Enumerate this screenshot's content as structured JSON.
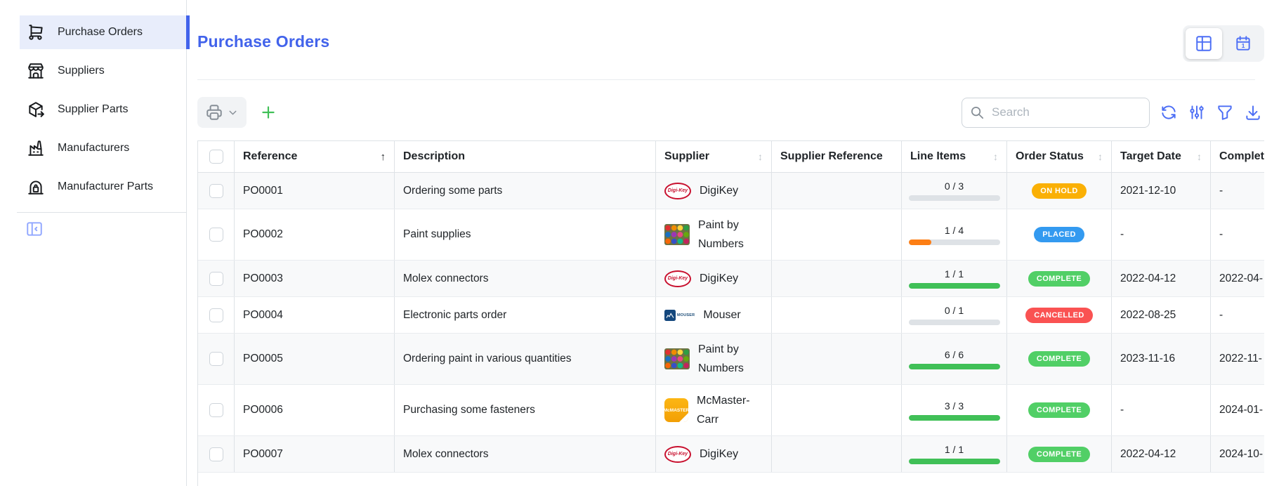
{
  "sidebar": {
    "items": [
      {
        "label": "Purchase Orders",
        "icon": "shopping-cart-icon",
        "active": true
      },
      {
        "label": "Suppliers",
        "icon": "storefront-icon",
        "active": false
      },
      {
        "label": "Supplier Parts",
        "icon": "package-export-icon",
        "active": false
      },
      {
        "label": "Manufacturers",
        "icon": "factory-icon",
        "active": false
      },
      {
        "label": "Manufacturer Parts",
        "icon": "warehouse-lock-icon",
        "active": false
      }
    ]
  },
  "header": {
    "title": "Purchase Orders",
    "view_toggle": [
      {
        "name": "table-view",
        "active": true
      },
      {
        "name": "calendar-view",
        "active": false
      }
    ]
  },
  "toolbar": {
    "search_placeholder": "Search",
    "search_value": ""
  },
  "table": {
    "sort_glyphs": {
      "asc": "↑",
      "both": "↕"
    },
    "columns": [
      {
        "label": "",
        "sort": null
      },
      {
        "label": "Reference",
        "sort": "asc"
      },
      {
        "label": "Description",
        "sort": null
      },
      {
        "label": "Supplier",
        "sort": "both"
      },
      {
        "label": "Supplier Reference",
        "sort": null
      },
      {
        "label": "Line Items",
        "sort": "both"
      },
      {
        "label": "Order Status",
        "sort": "both"
      },
      {
        "label": "Target Date",
        "sort": "both"
      },
      {
        "label": "Completion Date",
        "sort": null
      }
    ],
    "logos": {
      "digikey_label": "Digi-Key",
      "mouser_label": "MOUSER",
      "mcmaster_label": "McMASTER"
    },
    "rows": [
      {
        "reference": "PO0001",
        "description": "Ordering some parts",
        "supplier": {
          "name": "DigiKey",
          "logo": "digikey"
        },
        "supplier_reference": "",
        "line_items": {
          "text": "0 / 3",
          "pct": 0,
          "color": "#fd7e14"
        },
        "status": {
          "label": "ON HOLD",
          "color": "#fab005"
        },
        "target_date": "2021-12-10",
        "completion_date": "-"
      },
      {
        "reference": "PO0002",
        "description": "Paint supplies",
        "supplier": {
          "name": "Paint by Numbers",
          "logo": "paint"
        },
        "supplier_reference": "",
        "line_items": {
          "text": "1 / 4",
          "pct": 25,
          "color": "#fd7e14"
        },
        "status": {
          "label": "PLACED",
          "color": "#339af0"
        },
        "target_date": "-",
        "completion_date": "-"
      },
      {
        "reference": "PO0003",
        "description": "Molex connectors",
        "supplier": {
          "name": "DigiKey",
          "logo": "digikey"
        },
        "supplier_reference": "",
        "line_items": {
          "text": "1 / 1",
          "pct": 100,
          "color": "#40c057"
        },
        "status": {
          "label": "COMPLETE",
          "color": "#51cf66"
        },
        "target_date": "2022-04-12",
        "completion_date": "2022-04-"
      },
      {
        "reference": "PO0004",
        "description": "Electronic parts order",
        "supplier": {
          "name": "Mouser",
          "logo": "mouser"
        },
        "supplier_reference": "",
        "line_items": {
          "text": "0 / 1",
          "pct": 0,
          "color": "#fd7e14"
        },
        "status": {
          "label": "CANCELLED",
          "color": "#fa5252"
        },
        "target_date": "2022-08-25",
        "completion_date": "-"
      },
      {
        "reference": "PO0005",
        "description": "Ordering paint in various quantities",
        "supplier": {
          "name": "Paint by Numbers",
          "logo": "paint"
        },
        "supplier_reference": "",
        "line_items": {
          "text": "6 / 6",
          "pct": 100,
          "color": "#40c057"
        },
        "status": {
          "label": "COMPLETE",
          "color": "#51cf66"
        },
        "target_date": "2023-11-16",
        "completion_date": "2022-11-"
      },
      {
        "reference": "PO0006",
        "description": "Purchasing some fasteners",
        "supplier": {
          "name": "McMaster-Carr",
          "logo": "mcmaster"
        },
        "supplier_reference": "",
        "line_items": {
          "text": "3 / 3",
          "pct": 100,
          "color": "#40c057"
        },
        "status": {
          "label": "COMPLETE",
          "color": "#51cf66"
        },
        "target_date": "-",
        "completion_date": "2024-01-"
      },
      {
        "reference": "PO0007",
        "description": "Molex connectors",
        "supplier": {
          "name": "DigiKey",
          "logo": "digikey"
        },
        "supplier_reference": "",
        "line_items": {
          "text": "1 / 1",
          "pct": 100,
          "color": "#40c057"
        },
        "status": {
          "label": "COMPLETE",
          "color": "#51cf66"
        },
        "target_date": "2022-04-12",
        "completion_date": "2024-10-"
      }
    ]
  },
  "colors": {
    "accent": "#4263eb",
    "icon_blue": "#4c6ef5",
    "add_green": "#40c057",
    "status_on_hold": "#fab005",
    "status_placed": "#339af0",
    "status_complete": "#51cf66",
    "status_cancelled": "#fa5252",
    "progress_fill_green": "#40c057",
    "progress_fill_orange": "#fd7e14",
    "progress_track": "#dee2e6"
  }
}
